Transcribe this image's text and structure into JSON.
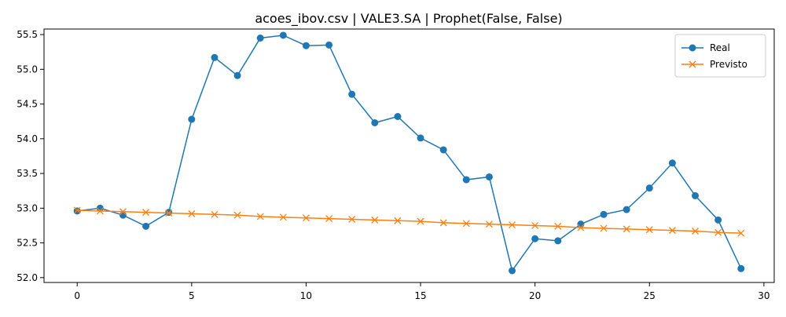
{
  "chart_data": {
    "type": "line",
    "title": "acoes_ibov.csv | VALE3.SA | Prophet(False, False)",
    "xlabel": "",
    "ylabel": "",
    "xlim": [
      -1.45,
      30.45
    ],
    "ylim": [
      51.93,
      55.58
    ],
    "x_ticks": [
      0,
      5,
      10,
      15,
      20,
      25,
      30
    ],
    "y_ticks": [
      52.0,
      52.5,
      53.0,
      53.5,
      54.0,
      54.5,
      55.0,
      55.5
    ],
    "grid": false,
    "legend_position": "top-right",
    "x": [
      0,
      1,
      2,
      3,
      4,
      5,
      6,
      7,
      8,
      9,
      10,
      11,
      12,
      13,
      14,
      15,
      16,
      17,
      18,
      19,
      20,
      21,
      22,
      23,
      24,
      25,
      26,
      27,
      28,
      29
    ],
    "series": [
      {
        "name": "Real",
        "color": "#1f77b4",
        "marker": "circle",
        "values": [
          52.96,
          53.0,
          52.9,
          52.74,
          52.94,
          54.28,
          55.17,
          54.91,
          55.45,
          55.49,
          55.34,
          55.35,
          54.64,
          54.23,
          54.32,
          54.01,
          53.84,
          53.41,
          53.45,
          52.1,
          52.56,
          52.53,
          52.77,
          52.91,
          52.98,
          53.29,
          53.65,
          53.18,
          52.83,
          52.13
        ]
      },
      {
        "name": "Previsto",
        "color": "#ff7f0e",
        "marker": "x",
        "values": [
          52.97,
          52.96,
          52.95,
          52.94,
          52.93,
          52.92,
          52.91,
          52.9,
          52.88,
          52.87,
          52.86,
          52.85,
          52.84,
          52.83,
          52.82,
          52.81,
          52.79,
          52.78,
          52.77,
          52.76,
          52.75,
          52.74,
          52.72,
          52.71,
          52.7,
          52.69,
          52.68,
          52.67,
          52.65,
          52.64
        ]
      }
    ]
  }
}
